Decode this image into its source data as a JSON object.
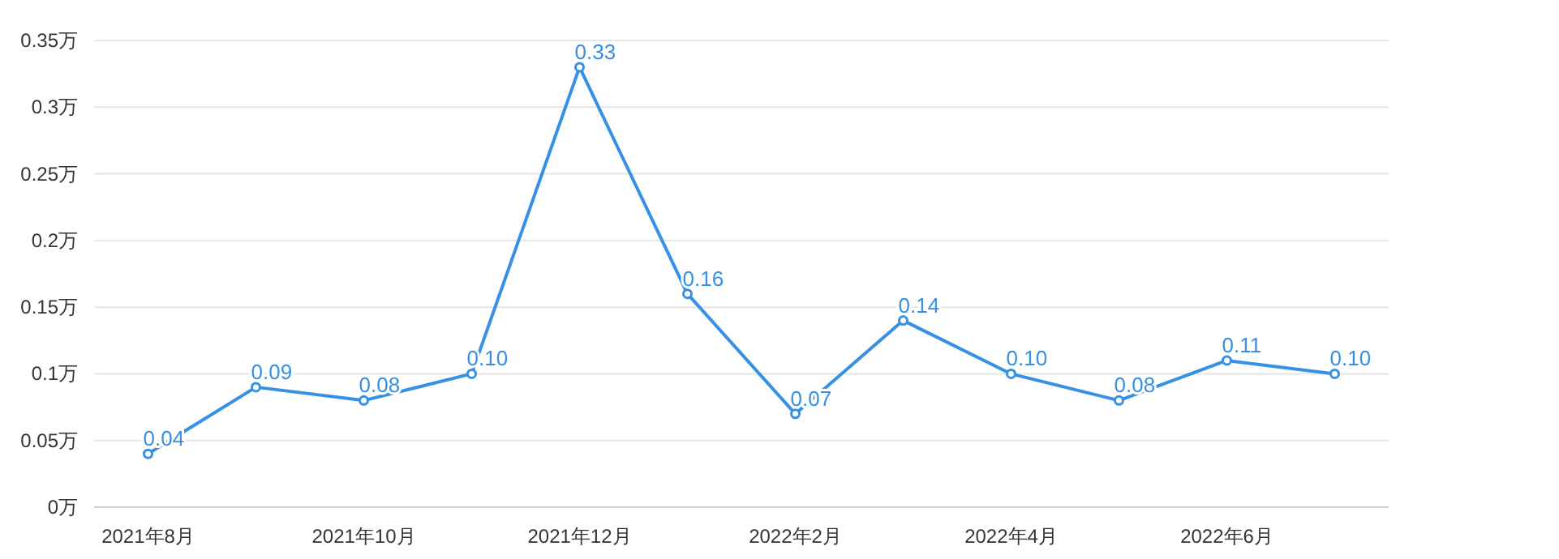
{
  "chart_data": {
    "type": "line",
    "categories": [
      "2021年8月",
      null,
      "2021年10月",
      null,
      "2021年12月",
      null,
      "2022年2月",
      null,
      "2022年4月",
      null,
      "2022年6月",
      null
    ],
    "series": [
      {
        "color": "#3590e6",
        "values": [
          0.04,
          0.09,
          0.08,
          0.1,
          0.33,
          0.16,
          0.07,
          0.14,
          0.1,
          0.08,
          0.11,
          0.1
        ],
        "value_labels": [
          "0.04",
          "0.09",
          "0.08",
          "0.10",
          "0.33",
          "0.16",
          "0.07",
          "0.14",
          "0.10",
          "0.08",
          "0.11",
          "0.10"
        ]
      }
    ],
    "ylim": [
      0,
      0.35
    ],
    "yticks": [
      {
        "value": 0,
        "label": "0万"
      },
      {
        "value": 0.05,
        "label": "0.05万"
      },
      {
        "value": 0.1,
        "label": "0.1万"
      },
      {
        "value": 0.15,
        "label": "0.15万"
      },
      {
        "value": 0.2,
        "label": "0.2万"
      },
      {
        "value": 0.25,
        "label": "0.25万"
      },
      {
        "value": 0.3,
        "label": "0.3万"
      },
      {
        "value": 0.35,
        "label": "0.35万"
      }
    ],
    "grid": "y",
    "marker": "circle",
    "line_style": "solid"
  }
}
